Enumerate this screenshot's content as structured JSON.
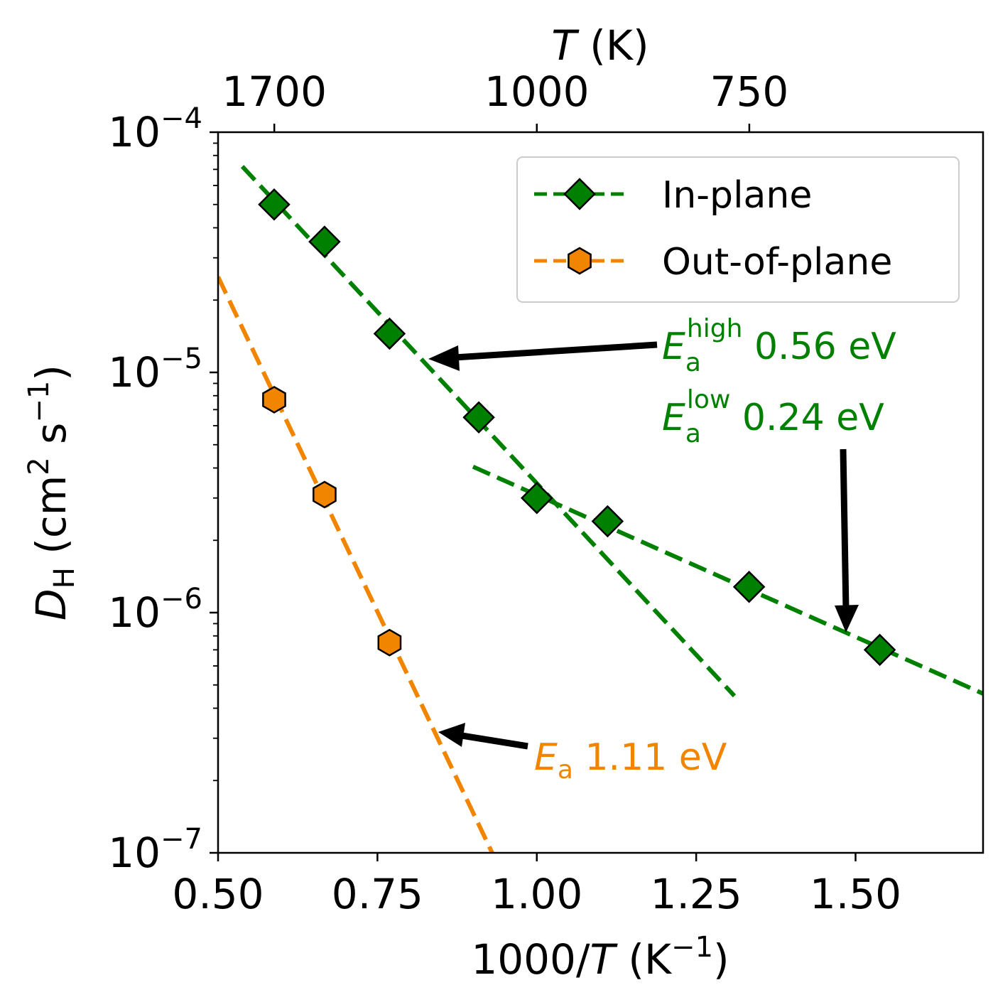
{
  "chart_data": {
    "type": "scatter",
    "x_scale": "linear",
    "y_scale": "log",
    "xlabel": {
      "prefix": "1000/",
      "var": "T",
      "suffix": " (K",
      "exp": "−1",
      "close": ")"
    },
    "ylabel": {
      "var": "D",
      "sub": "H",
      "unit_open": " (cm",
      "unit_exp1": "2",
      "unit_mid": " s",
      "unit_exp2": "−1",
      "unit_close": ")"
    },
    "top_xlabel": {
      "var": "T",
      "unit": " (K)"
    },
    "xlim": [
      0.5,
      1.7
    ],
    "ylim": [
      1e-07,
      0.0001
    ],
    "x_ticks": [
      0.5,
      0.75,
      1.0,
      1.25,
      1.5
    ],
    "x_tick_labels": [
      "0.50",
      "0.75",
      "1.00",
      "1.25",
      "1.50"
    ],
    "y_ticks": [
      {
        "value": 0.0001,
        "base": "10",
        "exp": "−4"
      },
      {
        "value": 1e-05,
        "base": "10",
        "exp": "−5"
      },
      {
        "value": 1e-06,
        "base": "10",
        "exp": "−6"
      },
      {
        "value": 1e-07,
        "base": "10",
        "exp": "−7"
      }
    ],
    "top_ticks": [
      {
        "T": 1700,
        "label": "1700"
      },
      {
        "T": 1000,
        "label": "1000"
      },
      {
        "T": 750,
        "label": "750"
      }
    ],
    "series": [
      {
        "name": "In-plane",
        "color": "#008000",
        "marker": "diamond",
        "x": [
          0.588,
          0.667,
          0.769,
          0.909,
          1.0,
          1.111,
          1.333,
          1.538
        ],
        "y": [
          5e-05,
          3.5e-05,
          1.45e-05,
          6.5e-06,
          3e-06,
          2.4e-06,
          1.28e-06,
          7e-07
        ]
      },
      {
        "name": "Out-of-plane",
        "color": "#f28500",
        "marker": "hexagon",
        "x": [
          0.588,
          0.667,
          0.769
        ],
        "y": [
          7.7e-06,
          3.1e-06,
          7.5e-07
        ]
      }
    ],
    "fit_lines": [
      {
        "name": "in-plane-high-fit",
        "color": "#008000",
        "x": [
          0.538,
          1.31
        ],
        "y": [
          7.2e-05,
          4.5e-07
        ]
      },
      {
        "name": "in-plane-low-fit",
        "color": "#008000",
        "x": [
          0.9,
          1.7
        ],
        "y": [
          4.05e-06,
          4.6e-07
        ]
      },
      {
        "name": "out-of-plane-fit",
        "color": "#f28500",
        "x": [
          0.5,
          0.93
        ],
        "y": [
          2.5e-05,
          1e-07
        ]
      }
    ],
    "annotations": [
      {
        "name": "annotation-ea-high",
        "color": "#008000",
        "sym": "E",
        "sub": "a",
        "sup": "high",
        "value": " 0.56 eV"
      },
      {
        "name": "annotation-ea-low",
        "color": "#008000",
        "sym": "E",
        "sub": "a",
        "sup": "low",
        "value": " 0.24 eV"
      },
      {
        "name": "annotation-ea-out",
        "color": "#f28500",
        "sym": "E",
        "sub": "a",
        "sup": "",
        "value": " 1.11 eV"
      }
    ],
    "legend": {
      "position": "top-right",
      "entries": [
        "In-plane",
        "Out-of-plane"
      ]
    }
  }
}
